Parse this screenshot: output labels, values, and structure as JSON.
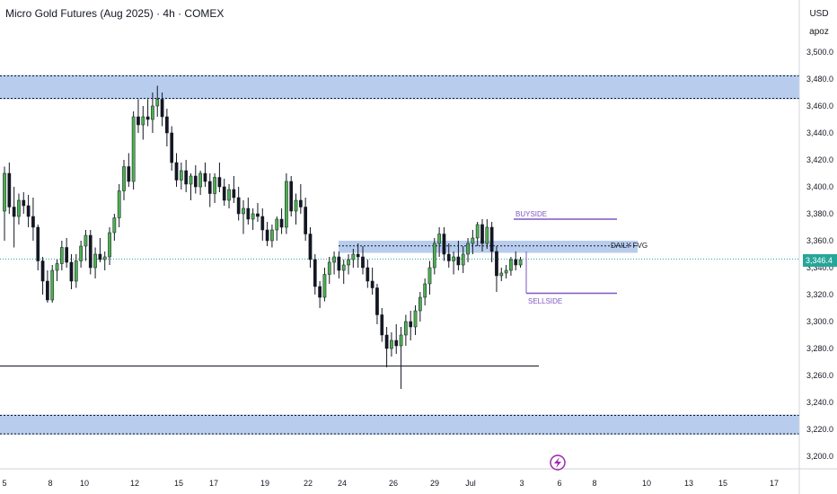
{
  "header": {
    "title": "Micro Gold Futures (Aug 2025) · 4h · COMEX",
    "currency": "USD",
    "currency_sub": "apoz"
  },
  "price_tag": "3,346.4",
  "colors": {
    "bull": "#4caf50",
    "bear": "#131722",
    "zone": "#b8cdee",
    "liquidity": "#7e57c2",
    "last_price": "#26a69a"
  },
  "chart_data": {
    "type": "candlestick",
    "title": "Micro Gold Futures (Aug 2025) · 4h · COMEX",
    "y_axis": {
      "ticks": [
        3500,
        3480,
        3460,
        3440,
        3420,
        3400,
        3380,
        3360,
        3340,
        3320,
        3300,
        3280,
        3260,
        3240,
        3220,
        3200
      ],
      "tick_labels": [
        "3,500.0",
        "3,480.0",
        "3,460.0",
        "3,440.0",
        "3,420.0",
        "3,400.0",
        "3,380.0",
        "3,360.0",
        "3,340.0",
        "3,320.0",
        "3,300.0",
        "3,280.0",
        "3,260.0",
        "3,240.0",
        "3,220.0",
        "3,200.0"
      ],
      "range": [
        3192,
        3533
      ]
    },
    "x_axis": {
      "tick_labels": [
        "5",
        "8",
        "10",
        "12",
        "15",
        "17",
        "19",
        "22",
        "24",
        "26",
        "29",
        "Jul",
        "3",
        "6",
        "8",
        "10",
        "13",
        "15",
        "17"
      ]
    },
    "last_price": 3346.4,
    "zones": [
      {
        "y_top": 3483,
        "y_bottom": 3465
      },
      {
        "label": "DAILY FVG",
        "y_top": 3360,
        "y_bottom": 3351
      },
      {
        "y_top": 3231,
        "y_bottom": 3216
      }
    ],
    "levels": [
      {
        "label": "BUYSIDE",
        "y": 3376
      },
      {
        "label": "SELLSIDE",
        "y": 3321
      },
      {
        "y": 3267
      }
    ],
    "candles": [
      {
        "o": 3382,
        "h": 3415,
        "l": 3360,
        "c": 3410
      },
      {
        "o": 3410,
        "h": 3418,
        "l": 3380,
        "c": 3385
      },
      {
        "o": 3385,
        "h": 3400,
        "l": 3355,
        "c": 3378
      },
      {
        "o": 3378,
        "h": 3395,
        "l": 3372,
        "c": 3390
      },
      {
        "o": 3390,
        "h": 3396,
        "l": 3380,
        "c": 3386
      },
      {
        "o": 3386,
        "h": 3394,
        "l": 3370,
        "c": 3378
      },
      {
        "o": 3378,
        "h": 3392,
        "l": 3360,
        "c": 3370
      },
      {
        "o": 3370,
        "h": 3372,
        "l": 3338,
        "c": 3345
      },
      {
        "o": 3345,
        "h": 3348,
        "l": 3320,
        "c": 3330
      },
      {
        "o": 3330,
        "h": 3338,
        "l": 3314,
        "c": 3316
      },
      {
        "o": 3316,
        "h": 3342,
        "l": 3314,
        "c": 3338
      },
      {
        "o": 3338,
        "h": 3346,
        "l": 3330,
        "c": 3343
      },
      {
        "o": 3343,
        "h": 3360,
        "l": 3338,
        "c": 3355
      },
      {
        "o": 3355,
        "h": 3362,
        "l": 3340,
        "c": 3344
      },
      {
        "o": 3344,
        "h": 3350,
        "l": 3324,
        "c": 3330
      },
      {
        "o": 3330,
        "h": 3350,
        "l": 3325,
        "c": 3345
      },
      {
        "o": 3345,
        "h": 3360,
        "l": 3340,
        "c": 3356
      },
      {
        "o": 3356,
        "h": 3368,
        "l": 3345,
        "c": 3364
      },
      {
        "o": 3364,
        "h": 3368,
        "l": 3335,
        "c": 3340
      },
      {
        "o": 3340,
        "h": 3355,
        "l": 3332,
        "c": 3350
      },
      {
        "o": 3350,
        "h": 3362,
        "l": 3344,
        "c": 3346
      },
      {
        "o": 3346,
        "h": 3352,
        "l": 3338,
        "c": 3348
      },
      {
        "o": 3348,
        "h": 3370,
        "l": 3342,
        "c": 3366
      },
      {
        "o": 3366,
        "h": 3380,
        "l": 3360,
        "c": 3377
      },
      {
        "o": 3377,
        "h": 3402,
        "l": 3370,
        "c": 3397
      },
      {
        "o": 3397,
        "h": 3420,
        "l": 3390,
        "c": 3415
      },
      {
        "o": 3415,
        "h": 3425,
        "l": 3400,
        "c": 3404
      },
      {
        "o": 3404,
        "h": 3456,
        "l": 3398,
        "c": 3452
      },
      {
        "o": 3452,
        "h": 3465,
        "l": 3440,
        "c": 3446
      },
      {
        "o": 3446,
        "h": 3460,
        "l": 3435,
        "c": 3452
      },
      {
        "o": 3452,
        "h": 3465,
        "l": 3445,
        "c": 3450
      },
      {
        "o": 3450,
        "h": 3470,
        "l": 3440,
        "c": 3460
      },
      {
        "o": 3460,
        "h": 3475,
        "l": 3452,
        "c": 3465
      },
      {
        "o": 3465,
        "h": 3470,
        "l": 3445,
        "c": 3452
      },
      {
        "o": 3452,
        "h": 3458,
        "l": 3430,
        "c": 3440
      },
      {
        "o": 3440,
        "h": 3445,
        "l": 3412,
        "c": 3418
      },
      {
        "o": 3418,
        "h": 3425,
        "l": 3400,
        "c": 3405
      },
      {
        "o": 3405,
        "h": 3418,
        "l": 3398,
        "c": 3412
      },
      {
        "o": 3412,
        "h": 3420,
        "l": 3396,
        "c": 3402
      },
      {
        "o": 3402,
        "h": 3410,
        "l": 3390,
        "c": 3408
      },
      {
        "o": 3408,
        "h": 3416,
        "l": 3395,
        "c": 3400
      },
      {
        "o": 3400,
        "h": 3412,
        "l": 3394,
        "c": 3410
      },
      {
        "o": 3410,
        "h": 3418,
        "l": 3400,
        "c": 3404
      },
      {
        "o": 3404,
        "h": 3410,
        "l": 3385,
        "c": 3395
      },
      {
        "o": 3395,
        "h": 3410,
        "l": 3388,
        "c": 3407
      },
      {
        "o": 3407,
        "h": 3418,
        "l": 3396,
        "c": 3400
      },
      {
        "o": 3400,
        "h": 3406,
        "l": 3386,
        "c": 3390
      },
      {
        "o": 3390,
        "h": 3402,
        "l": 3384,
        "c": 3398
      },
      {
        "o": 3398,
        "h": 3408,
        "l": 3388,
        "c": 3392
      },
      {
        "o": 3392,
        "h": 3400,
        "l": 3375,
        "c": 3380
      },
      {
        "o": 3380,
        "h": 3390,
        "l": 3365,
        "c": 3384
      },
      {
        "o": 3384,
        "h": 3392,
        "l": 3372,
        "c": 3376
      },
      {
        "o": 3376,
        "h": 3384,
        "l": 3368,
        "c": 3380
      },
      {
        "o": 3380,
        "h": 3388,
        "l": 3374,
        "c": 3378
      },
      {
        "o": 3378,
        "h": 3384,
        "l": 3360,
        "c": 3368
      },
      {
        "o": 3368,
        "h": 3374,
        "l": 3356,
        "c": 3360
      },
      {
        "o": 3360,
        "h": 3372,
        "l": 3355,
        "c": 3368
      },
      {
        "o": 3368,
        "h": 3378,
        "l": 3360,
        "c": 3376
      },
      {
        "o": 3376,
        "h": 3384,
        "l": 3365,
        "c": 3370
      },
      {
        "o": 3370,
        "h": 3410,
        "l": 3365,
        "c": 3404
      },
      {
        "o": 3404,
        "h": 3408,
        "l": 3378,
        "c": 3382
      },
      {
        "o": 3382,
        "h": 3395,
        "l": 3372,
        "c": 3390
      },
      {
        "o": 3390,
        "h": 3402,
        "l": 3380,
        "c": 3385
      },
      {
        "o": 3385,
        "h": 3392,
        "l": 3360,
        "c": 3365
      },
      {
        "o": 3365,
        "h": 3370,
        "l": 3340,
        "c": 3346
      },
      {
        "o": 3346,
        "h": 3350,
        "l": 3320,
        "c": 3326
      },
      {
        "o": 3326,
        "h": 3330,
        "l": 3310,
        "c": 3318
      },
      {
        "o": 3318,
        "h": 3340,
        "l": 3315,
        "c": 3335
      },
      {
        "o": 3335,
        "h": 3348,
        "l": 3328,
        "c": 3344
      },
      {
        "o": 3344,
        "h": 3352,
        "l": 3335,
        "c": 3348
      },
      {
        "o": 3348,
        "h": 3352,
        "l": 3332,
        "c": 3338
      },
      {
        "o": 3338,
        "h": 3346,
        "l": 3328,
        "c": 3342
      },
      {
        "o": 3342,
        "h": 3350,
        "l": 3335,
        "c": 3346
      },
      {
        "o": 3346,
        "h": 3354,
        "l": 3340,
        "c": 3350
      },
      {
        "o": 3350,
        "h": 3358,
        "l": 3340,
        "c": 3348
      },
      {
        "o": 3348,
        "h": 3356,
        "l": 3335,
        "c": 3340
      },
      {
        "o": 3340,
        "h": 3346,
        "l": 3325,
        "c": 3330
      },
      {
        "o": 3330,
        "h": 3340,
        "l": 3320,
        "c": 3325
      },
      {
        "o": 3325,
        "h": 3328,
        "l": 3298,
        "c": 3305
      },
      {
        "o": 3305,
        "h": 3310,
        "l": 3285,
        "c": 3290
      },
      {
        "o": 3290,
        "h": 3296,
        "l": 3266,
        "c": 3280
      },
      {
        "o": 3280,
        "h": 3292,
        "l": 3274,
        "c": 3286
      },
      {
        "o": 3286,
        "h": 3298,
        "l": 3276,
        "c": 3282
      },
      {
        "o": 3282,
        "h": 3296,
        "l": 3250,
        "c": 3290
      },
      {
        "o": 3290,
        "h": 3305,
        "l": 3282,
        "c": 3300
      },
      {
        "o": 3300,
        "h": 3308,
        "l": 3286,
        "c": 3296
      },
      {
        "o": 3296,
        "h": 3312,
        "l": 3290,
        "c": 3308
      },
      {
        "o": 3308,
        "h": 3322,
        "l": 3300,
        "c": 3318
      },
      {
        "o": 3318,
        "h": 3332,
        "l": 3312,
        "c": 3328
      },
      {
        "o": 3328,
        "h": 3345,
        "l": 3320,
        "c": 3340
      },
      {
        "o": 3340,
        "h": 3362,
        "l": 3335,
        "c": 3358
      },
      {
        "o": 3358,
        "h": 3370,
        "l": 3348,
        "c": 3365
      },
      {
        "o": 3365,
        "h": 3370,
        "l": 3345,
        "c": 3350
      },
      {
        "o": 3350,
        "h": 3358,
        "l": 3340,
        "c": 3345
      },
      {
        "o": 3345,
        "h": 3352,
        "l": 3335,
        "c": 3348
      },
      {
        "o": 3348,
        "h": 3360,
        "l": 3338,
        "c": 3342
      },
      {
        "o": 3342,
        "h": 3356,
        "l": 3336,
        "c": 3350
      },
      {
        "o": 3350,
        "h": 3362,
        "l": 3344,
        "c": 3358
      },
      {
        "o": 3358,
        "h": 3368,
        "l": 3350,
        "c": 3362
      },
      {
        "o": 3362,
        "h": 3374,
        "l": 3356,
        "c": 3372
      },
      {
        "o": 3372,
        "h": 3376,
        "l": 3352,
        "c": 3358
      },
      {
        "o": 3358,
        "h": 3376,
        "l": 3354,
        "c": 3370
      },
      {
        "o": 3370,
        "h": 3374,
        "l": 3344,
        "c": 3352
      },
      {
        "o": 3352,
        "h": 3356,
        "l": 3322,
        "c": 3334
      },
      {
        "o": 3334,
        "h": 3340,
        "l": 3330,
        "c": 3336
      },
      {
        "o": 3336,
        "h": 3342,
        "l": 3332,
        "c": 3338
      },
      {
        "o": 3338,
        "h": 3348,
        "l": 3334,
        "c": 3346
      },
      {
        "o": 3346,
        "h": 3352,
        "l": 3338,
        "c": 3342
      },
      {
        "o": 3342,
        "h": 3348,
        "l": 3340,
        "c": 3346
      }
    ],
    "annotations": [
      {
        "text": "BUYSIDE"
      },
      {
        "text": "DAILY FVG"
      },
      {
        "text": "SELLSIDE"
      }
    ]
  }
}
